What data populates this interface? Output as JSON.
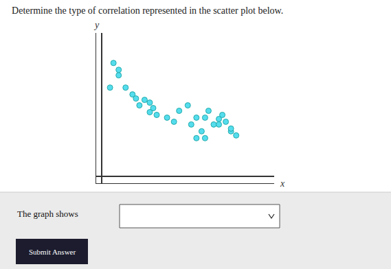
{
  "chart_data": {
    "type": "scatter",
    "title": "Determine the type of correlation represented in the scatter plot below.",
    "xlabel": "x",
    "ylabel": "y",
    "x": [
      0.07,
      0.1,
      0.1,
      0.05,
      0.14,
      0.18,
      0.2,
      0.25,
      0.22,
      0.28,
      0.3,
      0.28,
      0.32,
      0.38,
      0.45,
      0.42,
      0.5,
      0.55,
      0.52,
      0.62,
      0.6,
      0.65,
      0.68,
      0.7,
      0.68,
      0.72,
      0.75,
      0.78,
      0.75,
      0.55,
      0.6,
      0.58
    ],
    "values": [
      0.83,
      0.78,
      0.74,
      0.65,
      0.65,
      0.6,
      0.57,
      0.56,
      0.52,
      0.54,
      0.5,
      0.47,
      0.45,
      0.43,
      0.48,
      0.4,
      0.52,
      0.43,
      0.38,
      0.48,
      0.43,
      0.38,
      0.42,
      0.45,
      0.38,
      0.4,
      0.33,
      0.3,
      0.35,
      0.28,
      0.28,
      0.33
    ],
    "color": "#55DDEE",
    "xlim": [
      -0.03,
      1.0
    ],
    "ylim": [
      -0.05,
      1.05
    ],
    "tick_labels": false,
    "grid": false,
    "annotations": [
      "The graph shows",
      "Submit Answer"
    ]
  }
}
